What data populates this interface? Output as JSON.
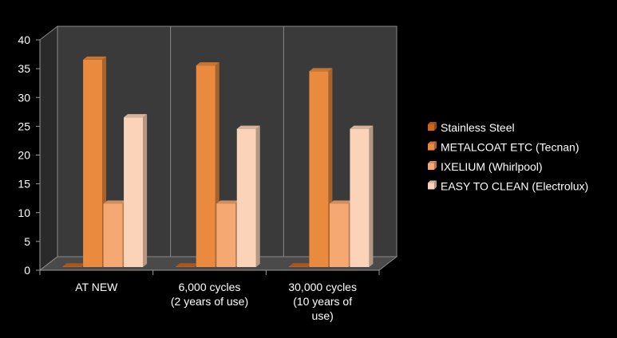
{
  "chart_data": {
    "type": "bar",
    "categories": [
      "AT NEW",
      "6,000 cycles\n(2 years of use)",
      "30,000 cycles\n(10 years of\nuse)"
    ],
    "series": [
      {
        "name": "Stainless Steel",
        "values": [
          0,
          0,
          0
        ],
        "color": "#C9651E"
      },
      {
        "name": "METALCOAT ETC (Tecnan)",
        "values": [
          36,
          35,
          34
        ],
        "color": "#E98A3E"
      },
      {
        "name": "IXELIUM (Whirlpool)",
        "values": [
          11,
          11,
          11
        ],
        "color": "#F5A872"
      },
      {
        "name": "EASY TO CLEAN (Electrolux)",
        "values": [
          26,
          24,
          24
        ],
        "color": "#FAD3B8"
      }
    ],
    "y_ticks": [
      0,
      5,
      10,
      15,
      20,
      25,
      30,
      35,
      40
    ],
    "ylim": [
      0,
      40
    ],
    "grid": false,
    "legend_position": "right",
    "background_color": "#000000",
    "plot_wall_color": "#3A3A3A",
    "plot_floor_color": "#4A4A4A",
    "text_color": "#FFFFFF"
  }
}
